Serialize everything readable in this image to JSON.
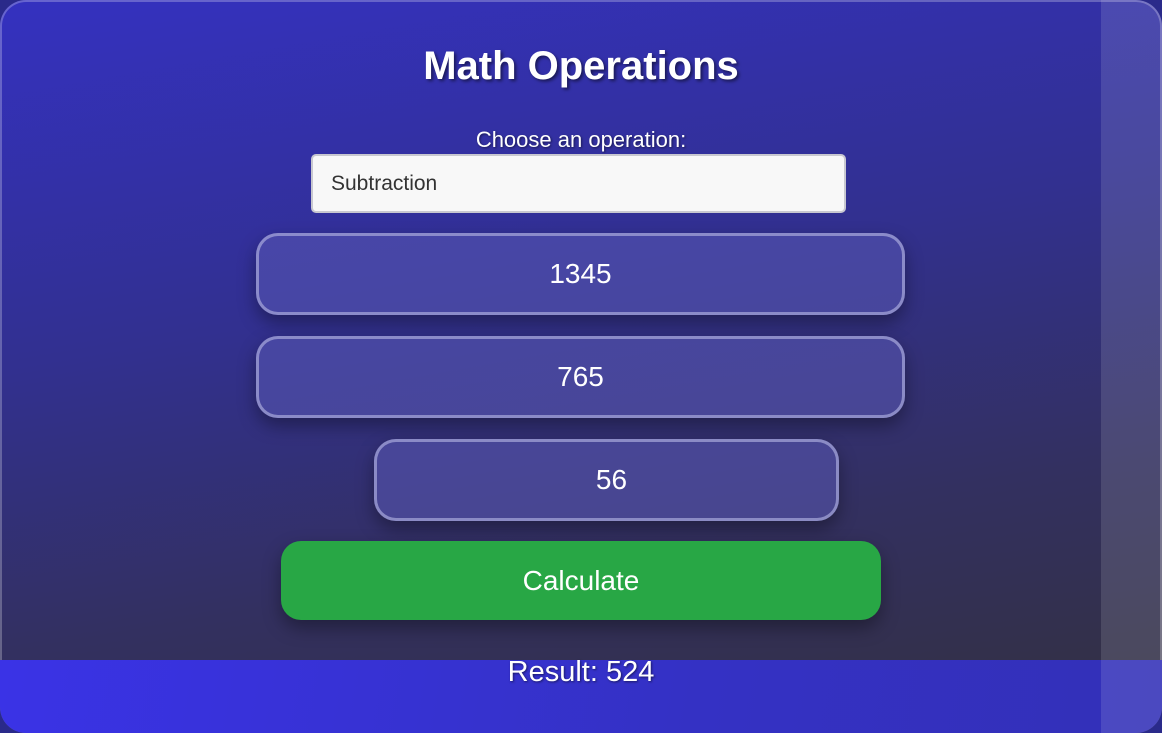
{
  "title": "Math Operations",
  "operation_label": "Choose an operation:",
  "operation_selected": "Subtraction",
  "inputs": [
    "1345",
    "765",
    "56"
  ],
  "calculate_label": "Calculate",
  "result_text": "Result: 524",
  "colors": {
    "accent_button": "#28a745",
    "background_top": "#3431c0",
    "background_bottom": "#33303f"
  }
}
